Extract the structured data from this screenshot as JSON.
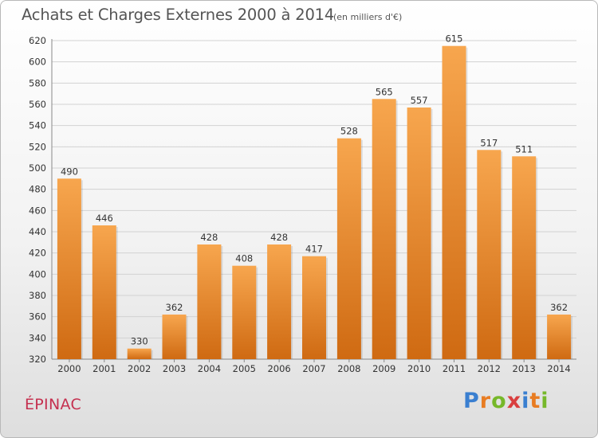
{
  "title": "Achats et Charges Externes 2000 à 2014",
  "subtitle": "(en milliers d'€)",
  "place": "ÉPINAC",
  "logo": {
    "letters": [
      "P",
      "r",
      "o",
      "x",
      "i",
      "t",
      "i"
    ],
    "colors": [
      "#3a7fd0",
      "#e87c22",
      "#76b82a",
      "#d93f3f",
      "#3a7fd0",
      "#e87c22",
      "#76b82a"
    ]
  },
  "colors": {
    "bar_light": "#f7a64e",
    "bar_dark": "#cf6a12",
    "grid": "#d2d2d2",
    "text": "#333333"
  },
  "chart_data": {
    "type": "bar",
    "categories": [
      "2000",
      "2001",
      "2002",
      "2003",
      "2004",
      "2005",
      "2006",
      "2007",
      "2008",
      "2009",
      "2010",
      "2011",
      "2012",
      "2013",
      "2014"
    ],
    "values": [
      490,
      446,
      330,
      362,
      428,
      408,
      428,
      417,
      528,
      565,
      557,
      615,
      517,
      511,
      362
    ],
    "ylim": [
      320,
      620
    ],
    "yticks": [
      320,
      340,
      360,
      380,
      400,
      420,
      440,
      460,
      480,
      500,
      520,
      540,
      560,
      580,
      600,
      620
    ],
    "grid": true,
    "data_labels": true
  }
}
